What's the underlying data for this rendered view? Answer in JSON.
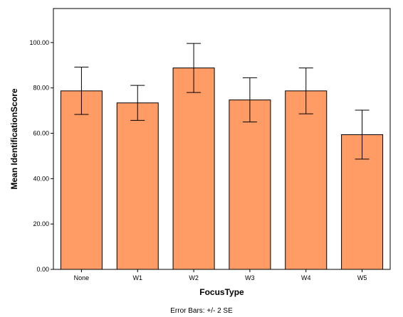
{
  "chart_data": {
    "type": "bar",
    "categories": [
      "None",
      "W1",
      "W2",
      "W3",
      "W4",
      "W5"
    ],
    "values": [
      78.7,
      73.4,
      88.8,
      74.7,
      78.7,
      59.4
    ],
    "error_bars": {
      "lower": [
        68.3,
        65.7,
        78.0,
        65.0,
        68.6,
        48.6
      ],
      "upper": [
        89.2,
        81.1,
        99.6,
        84.5,
        88.8,
        70.2
      ]
    },
    "xlabel": "FocusType",
    "ylabel": "Mean IdentificationScore",
    "ylim": [
      0,
      115
    ],
    "yticks": [
      0,
      20,
      40,
      60,
      80,
      100
    ],
    "ytick_labels": [
      "0.00",
      "20.00",
      "40.00",
      "60.00",
      "80.00",
      "100.00"
    ],
    "footnote": "Error Bars: +/- 2 SE",
    "grid": false,
    "colors": {
      "bar_fill": "#FF9C66",
      "bar_stroke": "#000000",
      "axis": "#000000"
    }
  }
}
